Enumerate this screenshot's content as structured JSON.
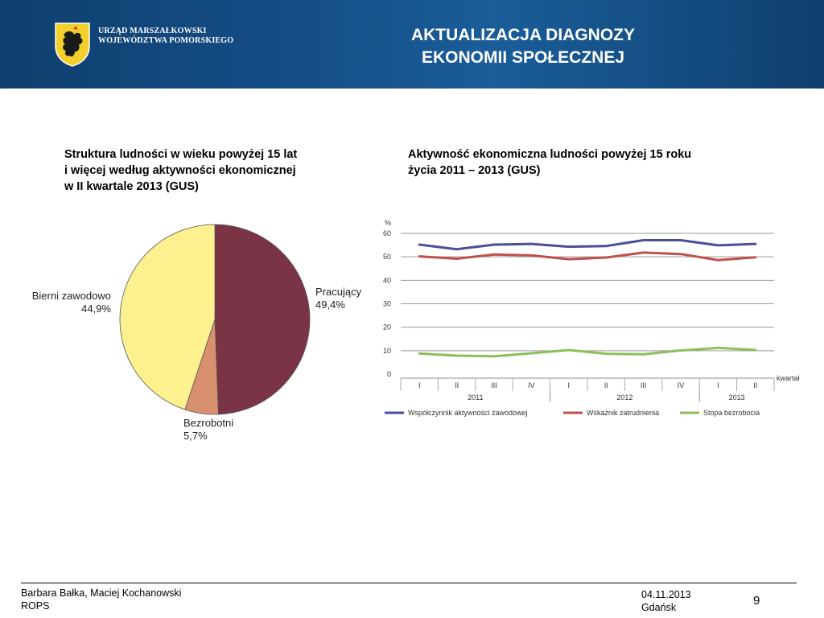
{
  "header": {
    "org_line1": "URZĄD MARSZAŁKOWSKI",
    "org_line2": "WOJEWÓDZTWA POMORSKIEGO",
    "title_line1": "AKTUALIZACJA DIAGNOZY",
    "title_line2": "EKONOMII SPOŁECZNEJ",
    "logo_icon": "griffin-shield-icon",
    "background_color": "#15508a"
  },
  "left_panel": {
    "title_line1": "Struktura ludności w wieku powyżej 15 lat",
    "title_line2": "i więcej według aktywności ekonomicznej",
    "title_line3": "w II kwartale 2013 (GUS)"
  },
  "right_panel": {
    "title_line1": "Aktywność ekonomiczna ludności powyżej 15 roku",
    "title_line2": "życia 2011 – 2013 (GUS)"
  },
  "chart_data": [
    {
      "type": "pie",
      "slices": [
        {
          "label": "Pracujący",
          "value_label": "49,4%",
          "value": 49.4,
          "color": "#7a3446"
        },
        {
          "label": "Bezrobotni",
          "value_label": "5,7%",
          "value": 5.7,
          "color": "#d9906f"
        },
        {
          "label": "Bierni zawodowo",
          "value_label": "44,9%",
          "value": 44.9,
          "color": "#fdf08e"
        }
      ]
    },
    {
      "type": "line",
      "ylabel": "%",
      "xlabel": "kwartał",
      "ylim": [
        0,
        60
      ],
      "yticks": [
        "0",
        "10",
        "20",
        "30",
        "40",
        "50",
        "60"
      ],
      "categories": [
        "I",
        "II",
        "III",
        "IV",
        "I",
        "II",
        "III",
        "IV",
        "I",
        "II"
      ],
      "year_groups": [
        {
          "label": "2011",
          "span": 4
        },
        {
          "label": "2012",
          "span": 4
        },
        {
          "label": "2013",
          "span": 2
        }
      ],
      "grid": true,
      "legend_position": "bottom",
      "series": [
        {
          "name": "Współczynnik aktywności zawodowej",
          "color": "#4a4f9a",
          "values": [
            55.2,
            53.2,
            55.2,
            55.5,
            54.3,
            54.6,
            57.1,
            57.1,
            54.9,
            55.5
          ]
        },
        {
          "name": "Wskaźnik zatrudnienia",
          "color": "#c0504d",
          "values": [
            50.2,
            49.2,
            51.0,
            50.6,
            49.0,
            49.7,
            51.8,
            51.2,
            48.6,
            49.8
          ]
        },
        {
          "name": "Stopa bezrobocia",
          "color": "#8cbf5a",
          "values": [
            8.8,
            7.9,
            7.6,
            8.9,
            10.3,
            8.7,
            8.5,
            10.1,
            11.2,
            10.3
          ]
        }
      ]
    }
  ],
  "footer": {
    "authors": "Barbara Bałka, Maciej Kochanowski",
    "org": "ROPS",
    "date": "04.11.2013",
    "place": "Gdańsk",
    "page": "9"
  }
}
